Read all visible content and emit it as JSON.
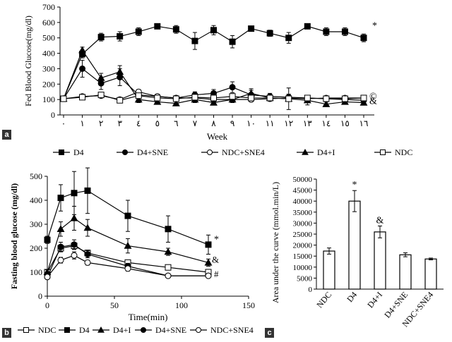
{
  "chart_data": [
    {
      "panel": "a",
      "type": "line",
      "xlabel": "Week",
      "ylabel": "Fed Blood Glucose(mg/dl)",
      "ylim": [
        0,
        700
      ],
      "yticks": [
        0,
        100,
        200,
        300,
        400,
        500,
        600,
        700
      ],
      "x": [
        0,
        1,
        2,
        3,
        4,
        5,
        6,
        7,
        8,
        9,
        10,
        11,
        12,
        13,
        14,
        15,
        16
      ],
      "xticklabels": [
        "٠",
        "١",
        "٢",
        "٣",
        "٤",
        "٥",
        "٦",
        "٧",
        "٨",
        "٩",
        "١٠",
        "١١",
        "١٢",
        "١٣",
        "١٤",
        "١٥",
        "١٦"
      ],
      "legend": "bottom",
      "series": [
        {
          "name": "D4",
          "marker": "square-filled",
          "values": [
            105,
            395,
            505,
            510,
            540,
            575,
            555,
            480,
            550,
            475,
            560,
            530,
            500,
            575,
            540,
            540,
            500
          ],
          "errors": [
            10,
            25,
            25,
            30,
            25,
            10,
            25,
            55,
            30,
            40,
            15,
            20,
            35,
            10,
            25,
            25,
            25
          ]
        },
        {
          "name": "D4+SNE",
          "marker": "circle-filled",
          "values": [
            105,
            300,
            205,
            245,
            130,
            120,
            110,
            130,
            140,
            180,
            130,
            120,
            115,
            110,
            105,
            100,
            95
          ],
          "errors": [
            10,
            55,
            40,
            55,
            20,
            15,
            15,
            20,
            25,
            35,
            30,
            20,
            20,
            15,
            15,
            10,
            10
          ]
        },
        {
          "name": "NDC+SNE4",
          "marker": "circle-open",
          "values": [
            105,
            120,
            125,
            100,
            150,
            120,
            110,
            110,
            100,
            100,
            100,
            105,
            110,
            105,
            110,
            110,
            110
          ],
          "errors": [
            10,
            10,
            10,
            10,
            15,
            10,
            10,
            10,
            10,
            10,
            10,
            10,
            10,
            10,
            10,
            10,
            10
          ]
        },
        {
          "name": "D4+I",
          "marker": "triangle-filled",
          "values": [
            105,
            420,
            240,
            280,
            100,
            85,
            75,
            100,
            80,
            100,
            140,
            110,
            105,
            95,
            70,
            85,
            80
          ],
          "errors": [
            10,
            20,
            30,
            40,
            20,
            15,
            15,
            20,
            15,
            20,
            30,
            20,
            70,
            30,
            15,
            15,
            10
          ]
        },
        {
          "name": "NDC",
          "marker": "square-open",
          "values": [
            105,
            115,
            130,
            95,
            125,
            110,
            105,
            115,
            110,
            120,
            110,
            110,
            105,
            110,
            105,
            105,
            110
          ],
          "errors": [
            10,
            10,
            10,
            10,
            10,
            10,
            10,
            10,
            10,
            10,
            10,
            10,
            10,
            10,
            10,
            10,
            10
          ]
        }
      ],
      "annotations": [
        "*",
        "©",
        "&"
      ]
    },
    {
      "panel": "b",
      "type": "line",
      "xlabel": "Time(min)",
      "ylabel": "Fasting blood glucose (mg/dl)",
      "xlim": [
        0,
        150
      ],
      "ylim": [
        0,
        500
      ],
      "xticks": [
        0,
        50,
        100,
        150
      ],
      "yticks": [
        0,
        100,
        200,
        300,
        400,
        500
      ],
      "legend": "bottom",
      "x": [
        0,
        10,
        20,
        30,
        60,
        90,
        120
      ],
      "series": [
        {
          "name": "NDC",
          "marker": "square-open",
          "values": [
            100,
            200,
            210,
            180,
            140,
            120,
            100
          ],
          "errors": [
            8,
            15,
            15,
            12,
            10,
            10,
            8
          ]
        },
        {
          "name": "D4",
          "marker": "square-filled",
          "values": [
            235,
            410,
            430,
            440,
            335,
            280,
            215
          ],
          "errors": [
            15,
            55,
            90,
            95,
            65,
            55,
            40
          ]
        },
        {
          "name": "D4+I",
          "marker": "triangle-filled",
          "values": [
            100,
            280,
            325,
            285,
            210,
            185,
            140
          ],
          "errors": [
            10,
            30,
            50,
            35,
            30,
            15,
            15
          ]
        },
        {
          "name": "D4+SNE",
          "marker": "circle-filled",
          "values": [
            80,
            205,
            215,
            175,
            125,
            85,
            85
          ],
          "errors": [
            8,
            20,
            20,
            15,
            12,
            5,
            5
          ]
        },
        {
          "name": "NDC+SNE4",
          "marker": "circle-open",
          "values": [
            80,
            150,
            170,
            140,
            115,
            85,
            85
          ],
          "errors": [
            8,
            12,
            15,
            10,
            10,
            5,
            5
          ]
        }
      ],
      "annotations": [
        "*",
        "&",
        "#"
      ]
    },
    {
      "panel": "c",
      "type": "bar",
      "ylabel": "Area under the curve (mmol.min/L)",
      "ylim": [
        0,
        50000
      ],
      "yticks": [
        0,
        5000,
        10000,
        15000,
        20000,
        25000,
        30000,
        35000,
        40000,
        45000,
        50000
      ],
      "categories": [
        "NDC",
        "D4",
        "D4+I",
        "D4+SNE",
        "NDC+SNE4"
      ],
      "values": [
        17300,
        40000,
        26000,
        15600,
        13700
      ],
      "errors": [
        1400,
        4800,
        2700,
        900,
        400
      ],
      "annotations": {
        "D4": "*",
        "D4+I": "&"
      }
    }
  ],
  "labels": {
    "tag_a": "a",
    "tag_b": "b",
    "tag_c": "c",
    "a_star": "*",
    "a_copy": "©",
    "a_amp": "&",
    "b_star": "*",
    "b_amp": "&",
    "b_hash": "#",
    "c_star": "*",
    "c_amp": "&"
  },
  "legend_a": [
    "D4",
    "D4+SNE",
    "NDC+SNE4",
    "D4+I",
    "NDC"
  ],
  "legend_b": [
    "NDC",
    "D4",
    "D4+I",
    "D4+SNE",
    "NDC+SNE4"
  ]
}
